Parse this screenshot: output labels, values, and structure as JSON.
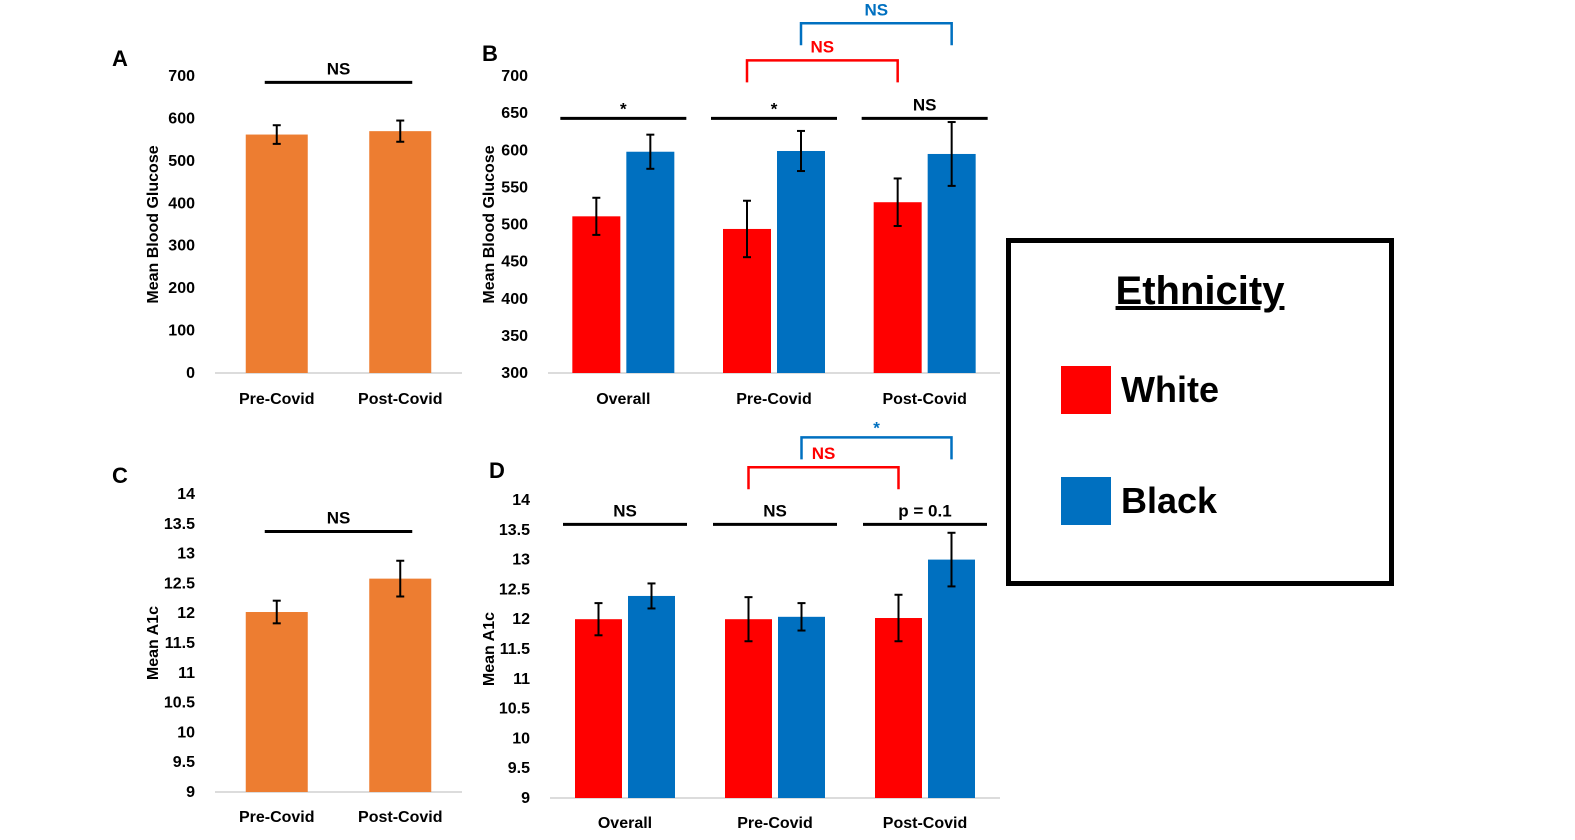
{
  "colors": {
    "orange": "#ED7D31",
    "white_group": "#FF0000",
    "black_group": "#0070C0",
    "axis": "#d0d0d0",
    "text": "#000000"
  },
  "legend": {
    "title": "Ethnicity",
    "items": [
      {
        "label": "White",
        "color": "#FF0000"
      },
      {
        "label": "Black",
        "color": "#0070C0"
      }
    ]
  },
  "chart_data": [
    {
      "panel": "A",
      "type": "bar",
      "categories": [
        "Pre-Covid",
        "Post-Covid"
      ],
      "series": [
        {
          "values": [
            562,
            570
          ],
          "errors": [
            22,
            25
          ],
          "color": "#ED7D31"
        }
      ],
      "ylabel": "Mean Blood Glucose",
      "ylim": [
        0,
        700
      ],
      "yticks": [
        0,
        100,
        200,
        300,
        400,
        500,
        600,
        700
      ],
      "ytick_labels": [
        "0",
        "100",
        "200",
        "300",
        "400",
        "500",
        "600",
        "700"
      ],
      "annotations": [
        {
          "text": "NS",
          "type": "line",
          "from": "Pre-Covid",
          "to": "Post-Covid",
          "level": 685,
          "color": "#000000"
        }
      ]
    },
    {
      "panel": "B",
      "type": "bar",
      "categories": [
        "Overall",
        "Pre-Covid",
        "Post-Covid"
      ],
      "series": [
        {
          "name": "White",
          "values": [
            511,
            494,
            530
          ],
          "errors": [
            25,
            38,
            32
          ],
          "color": "#FF0000"
        },
        {
          "name": "Black",
          "values": [
            598,
            599,
            595
          ],
          "errors": [
            23,
            27,
            43
          ],
          "color": "#0070C0"
        }
      ],
      "ylabel": "Mean Blood Glucose",
      "ylim": [
        300,
        700
      ],
      "yticks": [
        300,
        350,
        400,
        450,
        500,
        550,
        600,
        650,
        700
      ],
      "ytick_labels": [
        "300",
        "350",
        "400",
        "450",
        "500",
        "550",
        "600",
        "650",
        "700"
      ],
      "annotations": [
        {
          "text": "*",
          "type": "line",
          "category": "Overall",
          "level": 643,
          "color": "#000000"
        },
        {
          "text": "*",
          "type": "line",
          "category": "Pre-Covid",
          "level": 643,
          "color": "#000000"
        },
        {
          "text": "NS",
          "type": "line",
          "category": "Post-Covid",
          "level": 643,
          "color": "#000000"
        },
        {
          "text": "NS",
          "type": "bracket",
          "from": "Pre-Covid",
          "to": "Post-Covid",
          "series": "White",
          "level": 721,
          "color": "#FF0000"
        },
        {
          "text": "NS",
          "type": "bracket",
          "from": "Pre-Covid",
          "to": "Post-Covid",
          "series": "Black",
          "level": 771,
          "color": "#0070C0"
        }
      ]
    },
    {
      "panel": "C",
      "type": "bar",
      "categories": [
        "Pre-Covid",
        "Post-Covid"
      ],
      "series": [
        {
          "values": [
            12.02,
            12.58
          ],
          "errors": [
            0.19,
            0.3
          ],
          "color": "#ED7D31"
        }
      ],
      "ylabel": "Mean A1c",
      "ylim": [
        9,
        14
      ],
      "yticks": [
        9,
        9.5,
        10,
        10.5,
        11,
        11.5,
        12,
        12.5,
        13,
        13.5,
        14
      ],
      "ytick_labels": [
        "9",
        "9.5",
        "10",
        "10.5",
        "11",
        "11.5",
        "12",
        "12.5",
        "13",
        "13.5",
        "14"
      ],
      "annotations": [
        {
          "text": "NS",
          "type": "line",
          "from": "Pre-Covid",
          "to": "Post-Covid",
          "level": 13.37,
          "color": "#000000"
        }
      ]
    },
    {
      "panel": "D",
      "type": "bar",
      "categories": [
        "Overall",
        "Pre-Covid",
        "Post-Covid"
      ],
      "series": [
        {
          "name": "White",
          "values": [
            12.0,
            12.0,
            12.02
          ],
          "errors": [
            0.27,
            0.37,
            0.39
          ],
          "color": "#FF0000"
        },
        {
          "name": "Black",
          "values": [
            12.39,
            12.04,
            13.0
          ],
          "errors": [
            0.21,
            0.23,
            0.45
          ],
          "color": "#0070C0"
        }
      ],
      "ylabel": "Mean A1c",
      "ylim": [
        9,
        14
      ],
      "yticks": [
        9,
        9.5,
        10,
        10.5,
        11,
        11.5,
        12,
        12.5,
        13,
        13.5,
        14
      ],
      "ytick_labels": [
        "9",
        "9.5",
        "10",
        "10.5",
        "11",
        "11.5",
        "12",
        "12.5",
        "13",
        "13.5",
        "14"
      ],
      "annotations": [
        {
          "text": "NS",
          "type": "line",
          "category": "Overall",
          "level": 13.59,
          "color": "#000000"
        },
        {
          "text": "NS",
          "type": "line",
          "category": "Pre-Covid",
          "level": 13.59,
          "color": "#000000"
        },
        {
          "text": "p = 0.1",
          "type": "line",
          "category": "Post-Covid",
          "level": 13.59,
          "color": "#000000"
        },
        {
          "text": "NS",
          "type": "bracket",
          "from": "Pre-Covid",
          "to": "Post-Covid",
          "series": "White",
          "level": 14.55,
          "color": "#FF0000"
        },
        {
          "text": "*",
          "type": "bracket",
          "from": "Pre-Covid",
          "to": "Post-Covid",
          "series": "Black",
          "level": 15.05,
          "color": "#0070C0"
        }
      ]
    }
  ]
}
